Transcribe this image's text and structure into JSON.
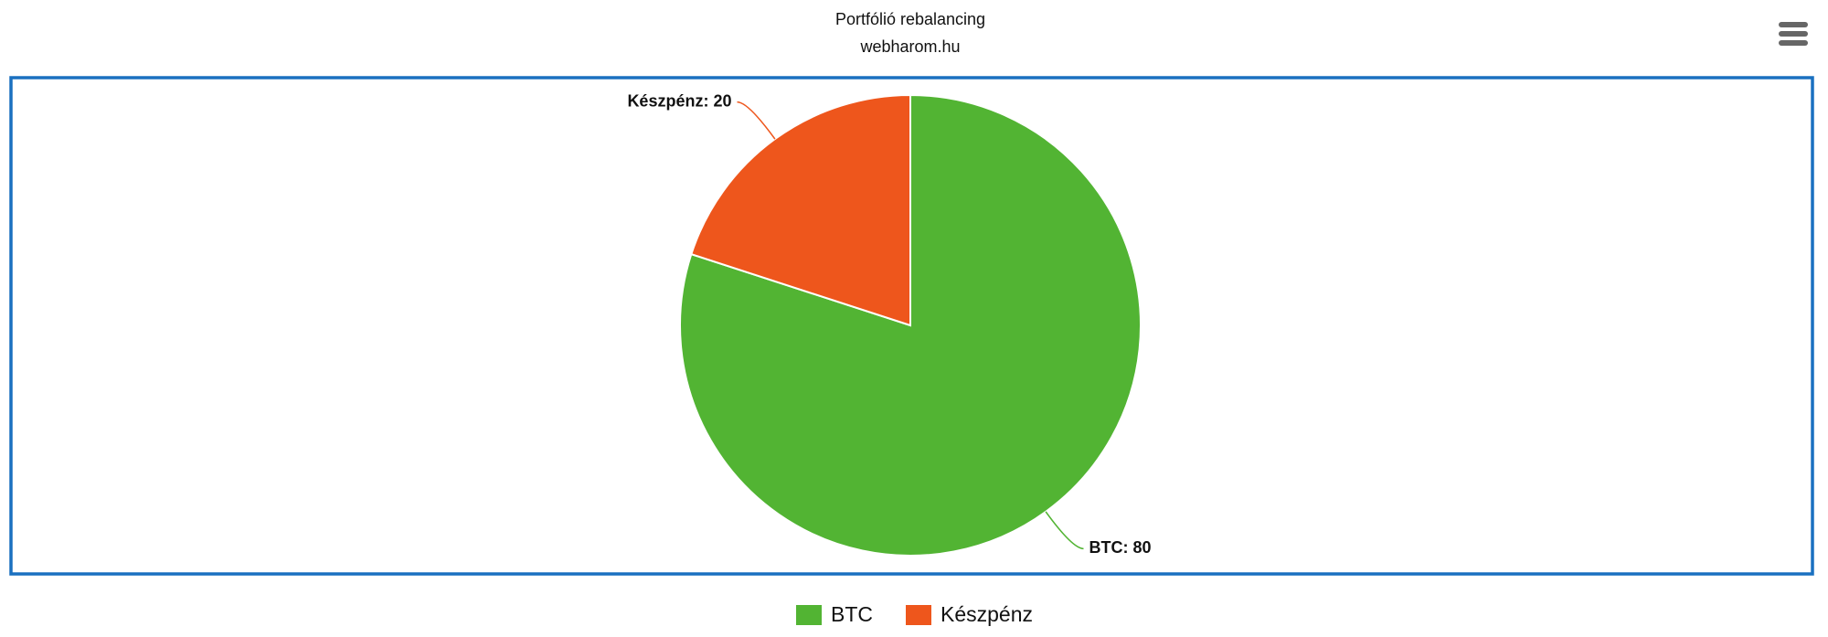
{
  "chart_data": {
    "type": "pie",
    "title": "Portfólió rebalancing",
    "subtitle": "webharom.hu",
    "categories": [
      "BTC",
      "Készpénz"
    ],
    "values": [
      80,
      20
    ],
    "value_labels": [
      "BTC: 80",
      "Készpénz: 20"
    ],
    "colors": [
      "#52b433",
      "#ee561c"
    ],
    "legend": "bottom"
  }
}
